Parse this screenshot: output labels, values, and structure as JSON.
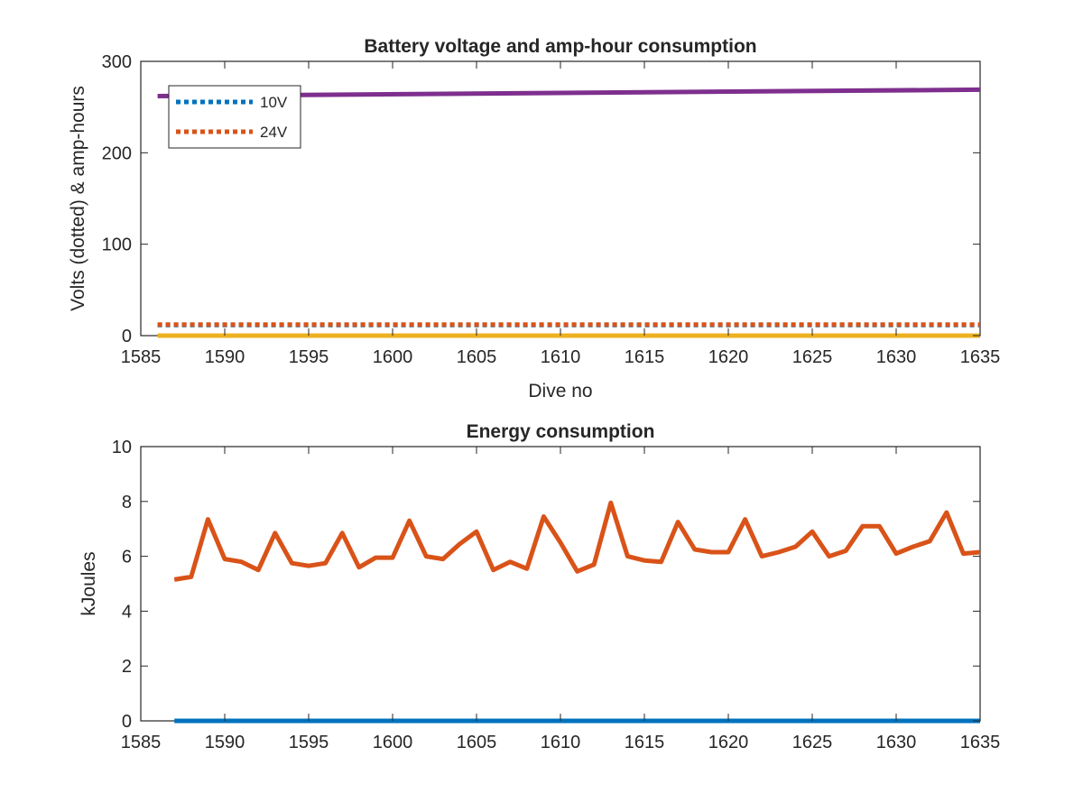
{
  "chart_data": [
    {
      "type": "line",
      "title": "Battery voltage and amp-hour consumption",
      "xlabel": "Dive no",
      "ylabel": "Volts (dotted) & amp-hours",
      "xlim": [
        1585,
        1635
      ],
      "ylim": [
        0,
        300
      ],
      "xticks": [
        1585,
        1590,
        1595,
        1600,
        1605,
        1610,
        1615,
        1620,
        1625,
        1630,
        1635
      ],
      "yticks": [
        0,
        100,
        200,
        300
      ],
      "legend_position": "top-left",
      "series": [
        {
          "name": "10V",
          "style": "dotted",
          "color": "#0072BD",
          "x": [
            1586,
            1635
          ],
          "y": [
            11.5,
            11.5
          ]
        },
        {
          "name": "24V",
          "style": "dotted",
          "color": "#D95319",
          "x": [
            1586,
            1635
          ],
          "y": [
            12,
            12
          ]
        },
        {
          "style": "solid",
          "color": "#EDB120",
          "x": [
            1586,
            1635
          ],
          "y": [
            0,
            0
          ]
        },
        {
          "style": "solid",
          "color": "#7E2F8E",
          "x": [
            1586,
            1635
          ],
          "y": [
            262,
            269
          ]
        }
      ]
    },
    {
      "type": "line",
      "title": "Energy consumption",
      "xlabel": "",
      "ylabel": "kJoules",
      "xlim": [
        1585,
        1635
      ],
      "ylim": [
        0,
        10
      ],
      "xticks": [
        1585,
        1590,
        1595,
        1600,
        1605,
        1610,
        1615,
        1620,
        1625,
        1630,
        1635
      ],
      "yticks": [
        0,
        2,
        4,
        6,
        8,
        10
      ],
      "series": [
        {
          "style": "solid",
          "color": "#0072BD",
          "x": [
            1587,
            1635
          ],
          "y": [
            0,
            0
          ]
        },
        {
          "style": "solid",
          "color": "#D95319",
          "x": [
            1587,
            1588,
            1589,
            1590,
            1591,
            1592,
            1593,
            1594,
            1595,
            1596,
            1597,
            1598,
            1599,
            1600,
            1601,
            1602,
            1603,
            1604,
            1605,
            1606,
            1607,
            1608,
            1609,
            1610,
            1611,
            1612,
            1613,
            1614,
            1615,
            1616,
            1617,
            1618,
            1619,
            1620,
            1621,
            1622,
            1623,
            1624,
            1625,
            1626,
            1627,
            1628,
            1629,
            1630,
            1631,
            1632,
            1633,
            1634,
            1635
          ],
          "y": [
            5.15,
            5.25,
            7.35,
            5.9,
            5.8,
            5.5,
            6.85,
            5.75,
            5.65,
            5.75,
            6.85,
            5.6,
            5.95,
            5.95,
            7.3,
            6.0,
            5.9,
            6.45,
            6.9,
            5.5,
            5.8,
            5.55,
            7.45,
            6.5,
            5.45,
            5.7,
            7.95,
            6.0,
            5.85,
            5.8,
            7.25,
            6.25,
            6.15,
            6.15,
            7.35,
            6.0,
            6.15,
            6.35,
            6.9,
            6.0,
            6.2,
            7.1,
            7.1,
            6.1,
            6.35,
            6.55,
            7.6,
            6.1,
            6.15
          ]
        }
      ]
    }
  ]
}
